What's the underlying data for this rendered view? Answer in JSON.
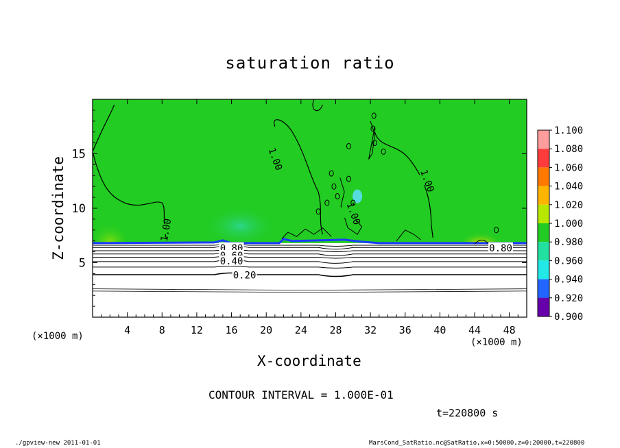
{
  "figure": {
    "title": "saturation ratio",
    "contour_interval_text": "CONTOUR INTERVAL = 1.000E-01",
    "time_text": "t=220800 s",
    "footer_left": "./gpview-new   2011-01-01",
    "footer_right": "MarsCond_SatRatio.nc@SatRatio,x=0:50000,z=0:20000,t=220800"
  },
  "colors": {
    "background_field": "#22cc22",
    "contour_line": "#000000",
    "near_surface_white": "#ffffff"
  },
  "chart_data": {
    "type": "heatmap",
    "title": "saturation ratio",
    "xlabel": "X-coordinate",
    "ylabel": "Z-coordinate",
    "x_unit": "(×1000 m)",
    "z_unit": "(×1000 m)",
    "xlim": [
      0,
      50
    ],
    "ylim": [
      0,
      20
    ],
    "x_ticks": [
      4,
      8,
      12,
      16,
      20,
      24,
      28,
      32,
      36,
      40,
      44,
      48
    ],
    "y_ticks": [
      5,
      10,
      15
    ],
    "colorbar": {
      "levels": [
        1.1,
        1.08,
        1.06,
        1.04,
        1.02,
        1.0,
        0.98,
        0.96,
        0.94,
        0.92,
        0.9
      ],
      "labels": [
        "1.100",
        "1.080",
        "1.060",
        "1.040",
        "1.020",
        "1.000",
        "0.980",
        "0.960",
        "0.940",
        "0.920",
        "0.900"
      ],
      "colors": [
        "#ff9c9c",
        "#ff3c3c",
        "#ff7800",
        "#ffb400",
        "#b8e800",
        "#22cc22",
        "#22e0a0",
        "#22e8e8",
        "#2266ff",
        "#0000cc",
        "#6600aa"
      ]
    },
    "contour_labels": [
      {
        "text": "1.00",
        "x": 21,
        "z": 14.5
      },
      {
        "text": "1.00",
        "x": 38.5,
        "z": 12.5
      },
      {
        "text": "1.00",
        "x": 30,
        "z": 9.5
      },
      {
        "text": "1.00",
        "x": 8.5,
        "z": 8
      },
      {
        "text": "0.80",
        "x": 16,
        "z": 6.3
      },
      {
        "text": "0.60",
        "x": 16,
        "z": 5.6
      },
      {
        "text": "0.40",
        "x": 16,
        "z": 5.1
      },
      {
        "text": "0.20",
        "x": 17.5,
        "z": 3.8
      },
      {
        "text": "0.80",
        "x": 47,
        "z": 6.3
      }
    ],
    "stratified_contours": [
      {
        "level": 0.2,
        "z_left": 3.9,
        "z_right": 3.9
      },
      {
        "level": 0.3,
        "z_left": 4.6,
        "z_right": 4.6
      },
      {
        "level": 0.4,
        "z_left": 5.1,
        "z_right": 5.1
      },
      {
        "level": 0.5,
        "z_left": 5.5,
        "z_right": 5.5
      },
      {
        "level": 0.6,
        "z_left": 5.8,
        "z_right": 5.8
      },
      {
        "level": 0.7,
        "z_left": 6.1,
        "z_right": 6.1
      },
      {
        "level": 0.8,
        "z_left": 6.4,
        "z_right": 6.4
      },
      {
        "level": 0.9,
        "z_left": 6.6,
        "z_right": 6.6
      }
    ],
    "lower_contours": [
      {
        "level": 0.1,
        "z": 2.4
      },
      {
        "level": 0.15,
        "z": 2.6
      }
    ],
    "saturation_top_z": 6.8
  }
}
